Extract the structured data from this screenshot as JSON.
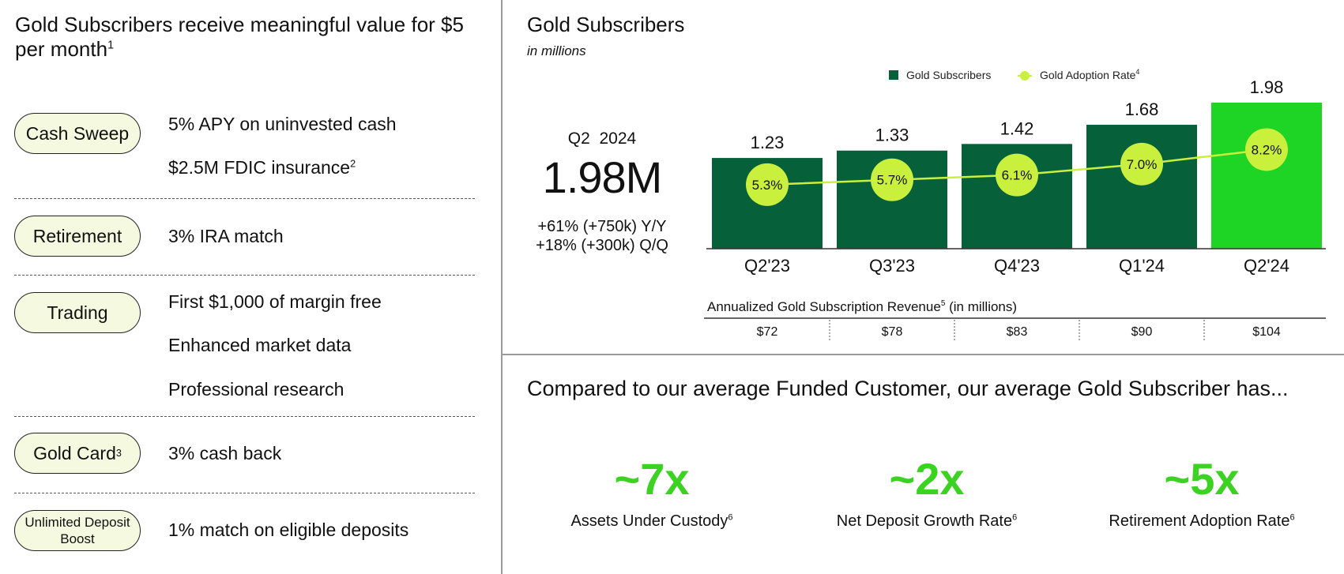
{
  "left": {
    "title": "Gold Subscribers receive meaningful value for $5 per month",
    "title_footnote": "1",
    "benefits": [
      {
        "category": "Cash Sweep",
        "category_footnote": "",
        "items": [
          {
            "text": "5% APY on uninvested cash",
            "footnote": ""
          },
          {
            "text": "$2.5M FDIC insurance",
            "footnote": "2"
          }
        ]
      },
      {
        "category": "Retirement",
        "category_footnote": "",
        "items": [
          {
            "text": "3% IRA match",
            "footnote": ""
          }
        ]
      },
      {
        "category": "Trading",
        "category_footnote": "",
        "items": [
          {
            "text": "First $1,000 of margin free",
            "footnote": ""
          },
          {
            "text": "Enhanced market data",
            "footnote": ""
          },
          {
            "text": "Professional research",
            "footnote": ""
          }
        ]
      },
      {
        "category": "Gold Card",
        "category_footnote": "3",
        "items": [
          {
            "text": "3% cash back",
            "footnote": ""
          }
        ]
      },
      {
        "category": "Unlimited Deposit Boost",
        "category_footnote": "",
        "items": [
          {
            "text": "1% match on eligible deposits",
            "footnote": ""
          }
        ]
      }
    ]
  },
  "kpi": {
    "period": "Q2  2024",
    "value": "1.98M",
    "yoy": "+61% (+750k) Y/Y",
    "qoq": "+18% (+300k) Q/Q"
  },
  "chart_data": {
    "type": "bar",
    "title": "Gold Subscribers",
    "subtitle": "in millions",
    "categories": [
      "Q2'23",
      "Q3'23",
      "Q4'23",
      "Q1'24",
      "Q2'24"
    ],
    "series": [
      {
        "name": "Gold Subscribers",
        "kind": "bar",
        "unit": "millions",
        "values": [
          1.23,
          1.33,
          1.42,
          1.68,
          1.98
        ]
      },
      {
        "name": "Gold Adoption Rate",
        "name_footnote": "4",
        "kind": "line",
        "unit": "percent",
        "values": [
          5.3,
          5.7,
          6.1,
          7.0,
          8.2
        ]
      }
    ],
    "bar_labels": [
      "1.23",
      "1.33",
      "1.42",
      "1.68",
      "1.98"
    ],
    "line_labels": [
      "5.3%",
      "5.7%",
      "6.1%",
      "7.0%",
      "8.2%"
    ],
    "ylim": [
      0,
      1.98
    ],
    "line_ylim": [
      0,
      13
    ],
    "legend_position": "top-right",
    "revenue_table": {
      "title": "Annualized Gold Subscription Revenue",
      "title_footnote": "5",
      "title_suffix": " (in millions)",
      "values": [
        72,
        78,
        83,
        90,
        104
      ],
      "labels": [
        "$72",
        "$78",
        "$83",
        "$90",
        "$104"
      ]
    },
    "colors": {
      "bar": "#06613a",
      "bar_highlight": "#1ed425",
      "line": "#c9f03d",
      "marker": "#c9f03d"
    }
  },
  "comparison": {
    "title": "Compared to our average Funded Customer, our average Gold Subscriber has...",
    "stats": [
      {
        "value": "~7x",
        "label": "Assets Under Custody",
        "footnote": "6"
      },
      {
        "value": "~2x",
        "label": "Net Deposit Growth Rate",
        "footnote": "6"
      },
      {
        "value": "~5x",
        "label": "Retirement Adoption Rate",
        "footnote": "6"
      }
    ],
    "accent_color": "#3cd222"
  }
}
